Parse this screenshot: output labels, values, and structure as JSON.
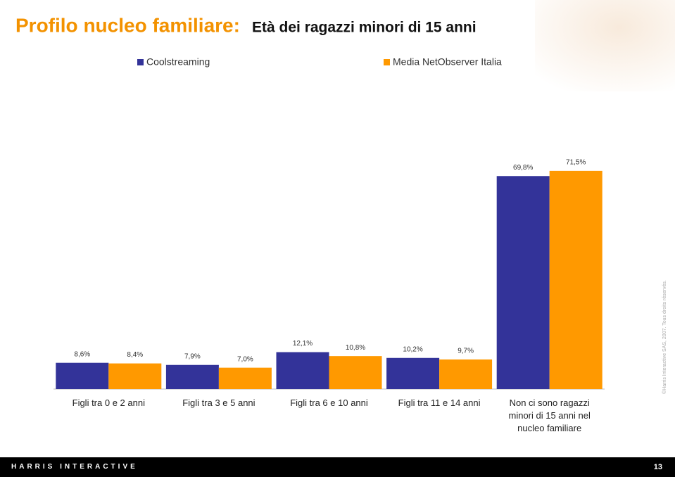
{
  "chart_data": {
    "type": "bar",
    "title": "Profilo nucleo familiare:",
    "subtitle": "Età dei ragazzi minori di 15 anni",
    "categories": [
      "Figli tra 0 e 2 anni",
      "Figli tra 3 e 5 anni",
      "Figli tra  6 e 10 anni",
      "Figli tra 11 e 14 anni",
      "Non ci sono ragazzi minori di 15 anni nel nucleo familiare"
    ],
    "series": [
      {
        "name": "Coolstreaming",
        "color": "#333399",
        "values": [
          8.6,
          7.9,
          12.1,
          10.2,
          69.8
        ],
        "value_labels": [
          "8,6%",
          "7,9%",
          "12,1%",
          "10,2%",
          "69,8%"
        ]
      },
      {
        "name": "Media NetObserver Italia",
        "color": "#ff9900",
        "values": [
          8.4,
          7.0,
          10.8,
          9.7,
          71.5
        ],
        "value_labels": [
          "8,4%",
          "7,0%",
          "10,8%",
          "9,7%",
          "71,5%"
        ]
      }
    ],
    "ylim": [
      0,
      80
    ]
  },
  "footer": "HARRIS INTERACTIVE",
  "page_number": "13",
  "copyright": "©Harris Interactive SAS, 2007. Tous droits réservés."
}
